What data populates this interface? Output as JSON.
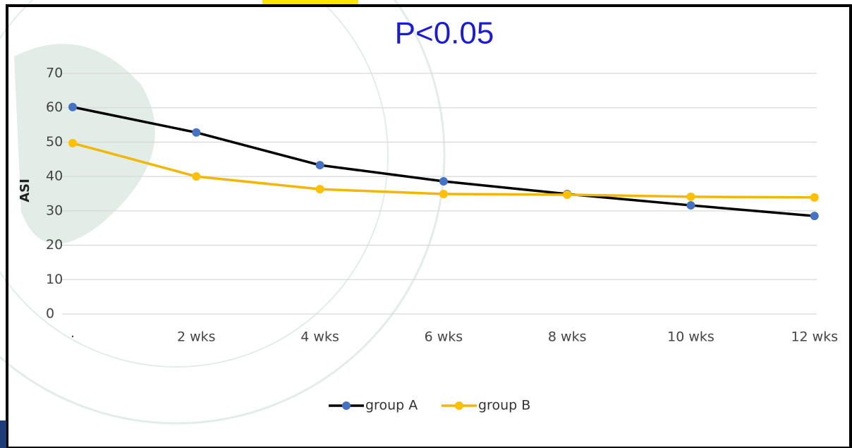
{
  "chart_data": {
    "type": "line",
    "annotation": "P<0.05",
    "y_label": "ASI",
    "categories": [
      "·",
      "2 wks",
      "4 wks",
      "6 wks",
      "8 wks",
      "10 wks",
      "12 wks"
    ],
    "series": [
      {
        "name": "group A",
        "color": "#000000",
        "marker_color": "#4472c4",
        "values": [
          60.2,
          52.8,
          43.3,
          38.6,
          34.9,
          31.6,
          28.5
        ]
      },
      {
        "name": "group B",
        "color": "#f2b705",
        "marker_color": "#ffc000",
        "values": [
          49.7,
          40,
          36.3,
          34.9,
          34.7,
          34.1,
          33.9
        ]
      }
    ],
    "ylim": [
      0,
      70
    ],
    "yticks": [
      0,
      10,
      20,
      30,
      40,
      50,
      60,
      70
    ],
    "grid": true,
    "legend": "bottom"
  }
}
